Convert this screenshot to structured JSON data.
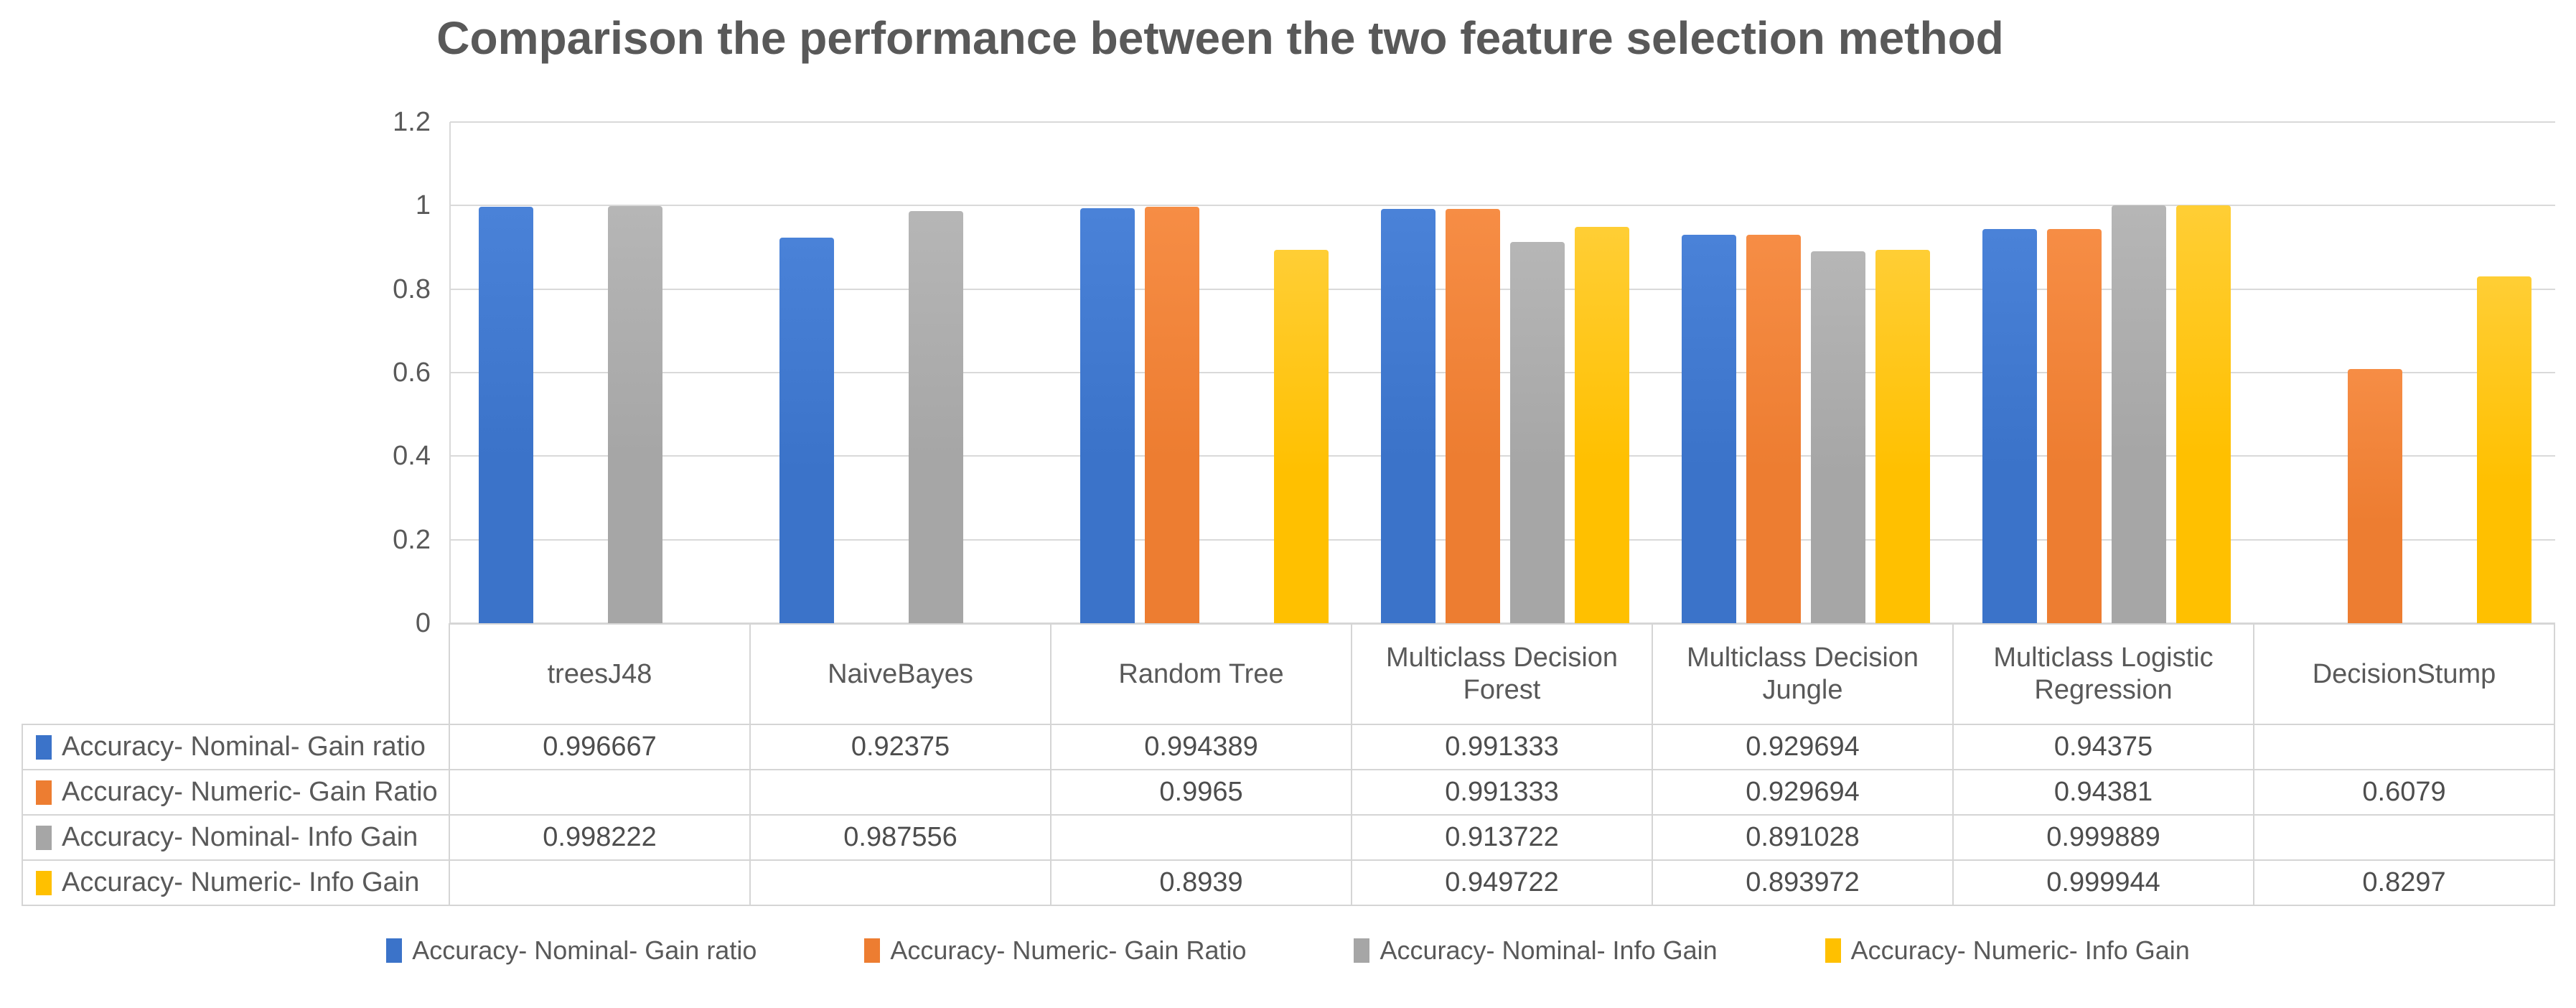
{
  "chart_data": {
    "type": "bar",
    "title": "Comparison the performance between the two feature selection method",
    "categories": [
      "treesJ48",
      "NaiveBayes",
      "Random Tree",
      "Multiclass Decision Forest",
      "Multiclass Decision Jungle",
      "Multiclass Logistic Regression",
      "DecisionStump"
    ],
    "series": [
      {
        "name": "Accuracy-  Nominal- Gain ratio",
        "color": "#3B73C9",
        "color_light": "#4A82D8",
        "values": [
          0.996667,
          0.92375,
          0.994389,
          0.991333,
          0.929694,
          0.94375,
          null
        ]
      },
      {
        "name": "Accuracy- Numeric- Gain Ratio",
        "color": "#ED7D31",
        "color_light": "#F68D45",
        "values": [
          null,
          null,
          0.9965,
          0.991333,
          0.929694,
          0.94381,
          0.6079
        ]
      },
      {
        "name": "Accuracy-  Nominal- Info Gain",
        "color": "#A6A6A6",
        "color_light": "#B6B6B6",
        "values": [
          0.998222,
          0.987556,
          null,
          0.913722,
          0.891028,
          0.999889,
          null
        ]
      },
      {
        "name": "Accuracy- Numeric- Info Gain",
        "color": "#FFC000",
        "color_light": "#FFCE35",
        "values": [
          null,
          null,
          0.8939,
          0.949722,
          0.893972,
          0.999944,
          0.8297
        ]
      }
    ],
    "xlabel": "",
    "ylabel": "",
    "ylim": [
      0,
      1.2
    ],
    "yticks": [
      "1.2",
      "1",
      "0.8",
      "0.6",
      "0.4",
      "0.2",
      "0"
    ],
    "grid": true,
    "legend_position": "bottom",
    "data_table_shown": true
  },
  "colors": {
    "grid": "#D9D9D9",
    "axis_text": "#595959",
    "table_border": "#D5D5D5",
    "table_text": "#4d4d4d",
    "title_text": "#595959",
    "background": "#ffffff"
  }
}
